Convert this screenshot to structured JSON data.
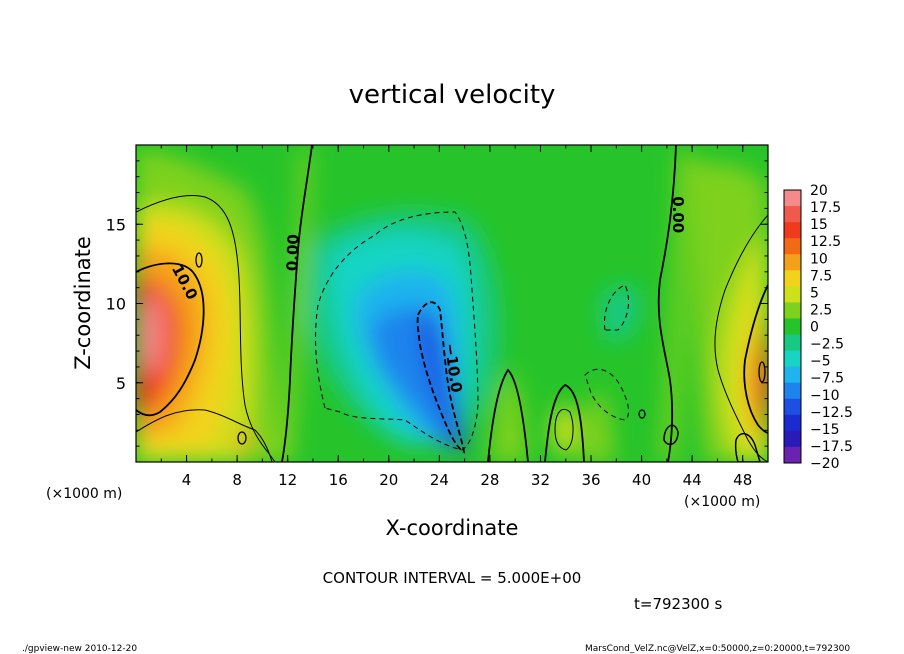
{
  "chart_data": {
    "type": "heatmap",
    "title": "vertical velocity",
    "xlabel": "X-coordinate",
    "ylabel": "Z-coordinate",
    "x_unit_label": "(×1000 m)",
    "z_unit_label": "(×1000 m)",
    "xlim": [
      0,
      50
    ],
    "ylim": [
      0,
      20
    ],
    "x_ticks": [
      4,
      8,
      12,
      16,
      20,
      24,
      28,
      32,
      36,
      40,
      44,
      48
    ],
    "y_ticks": [
      5,
      10,
      15
    ],
    "colorbar": {
      "levels": [
        20,
        17.5,
        15,
        12.5,
        10,
        7.5,
        5,
        2.5,
        0,
        -2.5,
        -5,
        -7.5,
        -10,
        -12.5,
        -15,
        -17.5,
        -20
      ],
      "labels": [
        "20",
        "17.5",
        "15",
        "12.5",
        "10",
        "7.5",
        "5",
        "2.5",
        "0",
        "−2.5",
        "−5",
        "−7.5",
        "−10",
        "−12.5",
        "−15",
        "−17.5",
        "−20"
      ],
      "colors": [
        "#f48a8a",
        "#f05a4c",
        "#f03a1e",
        "#f26a14",
        "#f5a01a",
        "#f3d21c",
        "#cde01a",
        "#7ed11c",
        "#26c42a",
        "#19c983",
        "#18d4c4",
        "#1fb4ee",
        "#1d84ec",
        "#1c4fe2",
        "#1a2bcf",
        "#2a1ab8",
        "#6a22b0"
      ]
    },
    "contour_labels": [
      {
        "text": "10.0",
        "x": 3.5,
        "z": 11.2,
        "angle": 62
      },
      {
        "text": "0.00",
        "x": 12.8,
        "z": 13.2,
        "angle": -88
      },
      {
        "text": "0.00",
        "x": 42.5,
        "z": 15.6,
        "angle": 90
      },
      {
        "text": "−10.0",
        "x": 24.7,
        "z": 5.9,
        "angle": 82
      }
    ],
    "contour_interval": "CONTOUR INTERVAL = 5.000E+00",
    "time": "t=792300 s"
  },
  "footer": {
    "left": "./gpview-new   2010-12-20",
    "right": "MarsCond_VelZ.nc@VelZ,x=0:50000,z=0:20000,t=792300"
  }
}
